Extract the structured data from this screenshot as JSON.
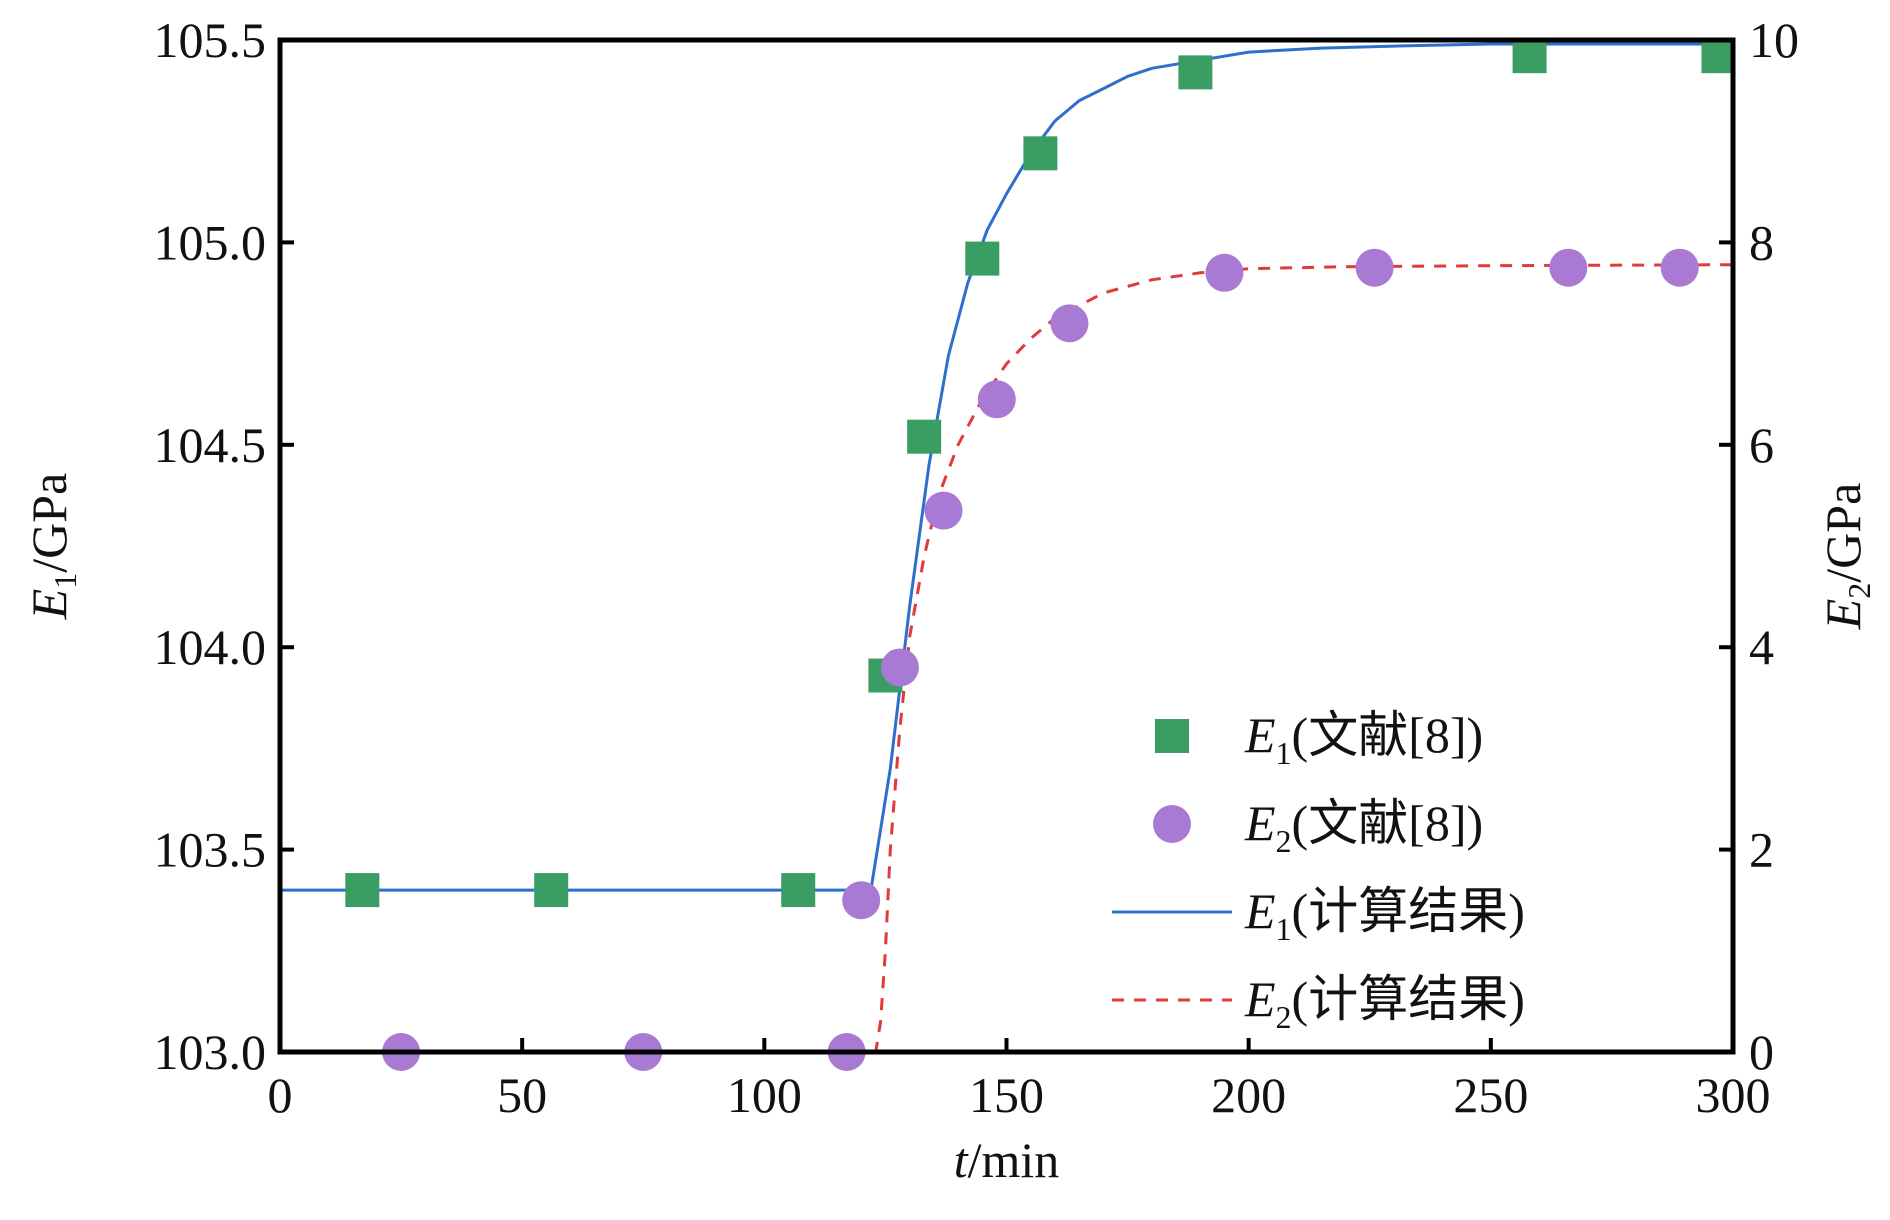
{
  "chart_data": {
    "type": "scatter",
    "xlabel": {
      "var": "t",
      "unit": "/min"
    },
    "ylabel_left": {
      "var": "E",
      "sub": "1",
      "unit": "/GPa"
    },
    "ylabel_right": {
      "var": "E",
      "sub": "2",
      "unit": "/GPa"
    },
    "xlim": [
      0,
      300
    ],
    "ylim_left": [
      103.0,
      105.5
    ],
    "ylim_right": [
      0,
      10
    ],
    "x_ticks": [
      "0",
      "50",
      "100",
      "150",
      "200",
      "250",
      "300"
    ],
    "x_tick_values": [
      0,
      50,
      100,
      150,
      200,
      250,
      300
    ],
    "y_left_ticks": [
      "103.0",
      "103.5",
      "104.0",
      "104.5",
      "105.0",
      "105.5"
    ],
    "y_left_tick_values": [
      103.0,
      103.5,
      104.0,
      104.5,
      105.0,
      105.5
    ],
    "y_right_ticks": [
      "0",
      "2",
      "4",
      "6",
      "8",
      "10"
    ],
    "y_right_tick_values": [
      0,
      2,
      4,
      6,
      8,
      10
    ],
    "grid": false,
    "legend_position": "lower-right",
    "series": [
      {
        "name_var": "E",
        "name_sub": "1",
        "name_rest": "(文献[8])",
        "kind": "scatter",
        "marker": "square",
        "axis": "left",
        "color": "#3a9e64",
        "x": [
          17,
          56,
          107,
          125,
          133,
          145,
          157,
          189,
          258,
          297
        ],
        "y": [
          103.4,
          103.4,
          103.4,
          103.93,
          104.52,
          104.96,
          105.22,
          105.42,
          105.46,
          105.46
        ]
      },
      {
        "name_var": "E",
        "name_sub": "2",
        "name_rest": "(文献[8])",
        "kind": "scatter",
        "marker": "circle",
        "axis": "right",
        "color": "#a97ad4",
        "x": [
          25,
          75,
          117,
          120,
          128,
          137,
          148,
          163,
          195,
          226,
          266,
          289
        ],
        "y": [
          0,
          0,
          0,
          1.5,
          3.8,
          5.35,
          6.45,
          7.2,
          7.7,
          7.75,
          7.75,
          7.75
        ]
      },
      {
        "name_var": "E",
        "name_sub": "1",
        "name_rest": "(计算结果)",
        "kind": "line",
        "dash": "solid",
        "axis": "left",
        "color": "#2f6fcc",
        "x": [
          0,
          122,
          126,
          130,
          134,
          138,
          142,
          146,
          150,
          155,
          160,
          165,
          170,
          175,
          180,
          190,
          200,
          215,
          230,
          250,
          270,
          300
        ],
        "y": [
          103.4,
          103.4,
          103.7,
          104.1,
          104.45,
          104.72,
          104.9,
          105.03,
          105.12,
          105.22,
          105.3,
          105.35,
          105.38,
          105.41,
          105.43,
          105.45,
          105.47,
          105.48,
          105.485,
          105.49,
          105.49,
          105.49
        ]
      },
      {
        "name_var": "E",
        "name_sub": "2",
        "name_rest": "(计算结果)",
        "kind": "line",
        "dash": "dashed",
        "axis": "right",
        "color": "#e03a3a",
        "x": [
          0,
          123,
          124,
          125,
          126,
          128,
          130,
          133,
          136,
          140,
          145,
          150,
          155,
          160,
          170,
          180,
          190,
          200,
          220,
          250,
          300
        ],
        "y": [
          0,
          0,
          0.3,
          1.0,
          2.0,
          3.2,
          4.1,
          4.9,
          5.5,
          6.0,
          6.45,
          6.8,
          7.05,
          7.25,
          7.5,
          7.63,
          7.7,
          7.74,
          7.76,
          7.77,
          7.78
        ]
      }
    ]
  }
}
